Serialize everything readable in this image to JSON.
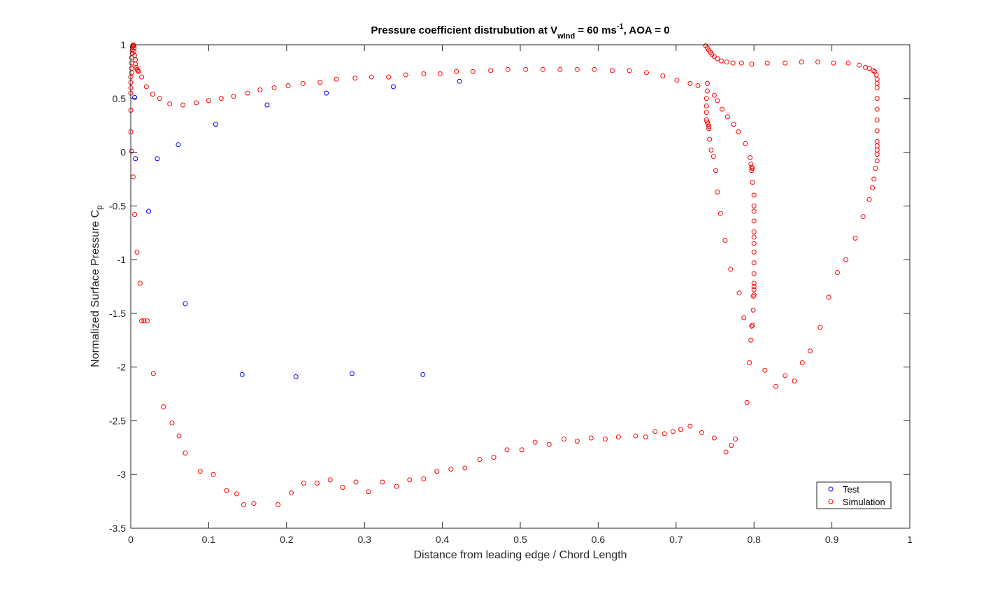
{
  "chart_data": {
    "type": "scatter",
    "title": {
      "prefix": "Pressure coefficient distrubution at V",
      "sub": "wind",
      "mid": " = 60 ms",
      "sup": "-1",
      "suffix": ", AOA = 0"
    },
    "xlabel": "Distance from leading edge / Chord Length",
    "ylabel": {
      "main": "Normalized Surface Pressure C",
      "sub": "p"
    },
    "xlim": [
      0,
      1
    ],
    "ylim": [
      -3.5,
      1
    ],
    "xticks": [
      0,
      0.1,
      0.2,
      0.3,
      0.4,
      0.5,
      0.6,
      0.7,
      0.8,
      0.9,
      1
    ],
    "xtick_labels": [
      "0",
      "0.1",
      "0.2",
      "0.3",
      "0.4",
      "0.5",
      "0.6",
      "0.7",
      "0.8",
      "0.9",
      "1"
    ],
    "yticks": [
      1,
      0.5,
      0,
      -0.5,
      -1,
      -1.5,
      -2,
      -2.5,
      -3,
      -3.5
    ],
    "ytick_labels": [
      "1",
      "0.5",
      "0",
      "-0.5",
      "-1",
      "-1.5",
      "-2",
      "-2.5",
      "-3",
      "-3.5"
    ],
    "grid": false,
    "legend_position": "bottom-right",
    "series": [
      {
        "name": "Test",
        "color": "#0000ff",
        "marker": "circle-open",
        "points": [
          [
            0.005,
            0.51
          ],
          [
            0.006,
            -0.06
          ],
          [
            0.034,
            -0.06
          ],
          [
            0.023,
            -0.55
          ],
          [
            0.061,
            0.07
          ],
          [
            0.07,
            -1.41
          ],
          [
            0.109,
            0.26
          ],
          [
            0.143,
            -2.07
          ],
          [
            0.175,
            0.44
          ],
          [
            0.212,
            -2.09
          ],
          [
            0.251,
            0.55
          ],
          [
            0.284,
            -2.06
          ],
          [
            0.337,
            0.61
          ],
          [
            0.375,
            -2.07
          ],
          [
            0.422,
            0.66
          ]
        ]
      },
      {
        "name": "Simulation",
        "color": "#ff0000",
        "marker": "circle-open",
        "points": [
          [
            0.0,
            0.55
          ],
          [
            0.0,
            0.6
          ],
          [
            0.0,
            0.65
          ],
          [
            0.0,
            0.7
          ],
          [
            0.001,
            0.74
          ],
          [
            0.001,
            0.78
          ],
          [
            0.001,
            0.83
          ],
          [
            0.001,
            0.88
          ],
          [
            0.002,
            0.92
          ],
          [
            0.002,
            0.95
          ],
          [
            0.002,
            0.98
          ],
          [
            0.003,
            0.99
          ],
          [
            0.003,
            1.0
          ],
          [
            0.004,
            0.99
          ],
          [
            0.004,
            0.97
          ],
          [
            0.004,
            0.94
          ],
          [
            0.005,
            0.9
          ],
          [
            0.006,
            0.86
          ],
          [
            0.006,
            0.82
          ],
          [
            0.007,
            0.79
          ],
          [
            0.008,
            0.77
          ],
          [
            0.009,
            0.76
          ],
          [
            0.01,
            0.75
          ],
          [
            0.014,
            0.7
          ],
          [
            0.02,
            0.61
          ],
          [
            0.028,
            0.54
          ],
          [
            0.037,
            0.5
          ],
          [
            0.05,
            0.45
          ],
          [
            0.067,
            0.44
          ],
          [
            0.084,
            0.46
          ],
          [
            0.1,
            0.48
          ],
          [
            0.116,
            0.5
          ],
          [
            0.132,
            0.52
          ],
          [
            0.15,
            0.55
          ],
          [
            0.166,
            0.58
          ],
          [
            0.184,
            0.6
          ],
          [
            0.202,
            0.62
          ],
          [
            0.221,
            0.64
          ],
          [
            0.243,
            0.65
          ],
          [
            0.264,
            0.68
          ],
          [
            0.288,
            0.69
          ],
          [
            0.309,
            0.7
          ],
          [
            0.331,
            0.7
          ],
          [
            0.353,
            0.72
          ],
          [
            0.376,
            0.73
          ],
          [
            0.397,
            0.73
          ],
          [
            0.418,
            0.75
          ],
          [
            0.439,
            0.75
          ],
          [
            0.462,
            0.76
          ],
          [
            0.484,
            0.77
          ],
          [
            0.507,
            0.77
          ],
          [
            0.529,
            0.77
          ],
          [
            0.551,
            0.77
          ],
          [
            0.573,
            0.77
          ],
          [
            0.595,
            0.77
          ],
          [
            0.618,
            0.76
          ],
          [
            0.64,
            0.76
          ],
          [
            0.662,
            0.74
          ],
          [
            0.683,
            0.71
          ],
          [
            0.701,
            0.67
          ],
          [
            0.718,
            0.64
          ],
          [
            0.728,
            0.62
          ],
          [
            0.738,
            0.99
          ],
          [
            0.74,
            0.97
          ],
          [
            0.742,
            0.95
          ],
          [
            0.744,
            0.93
          ],
          [
            0.746,
            0.91
          ],
          [
            0.749,
            0.89
          ],
          [
            0.753,
            0.87
          ],
          [
            0.758,
            0.85
          ],
          [
            0.765,
            0.84
          ],
          [
            0.773,
            0.83
          ],
          [
            0.784,
            0.83
          ],
          [
            0.797,
            0.82
          ],
          [
            0.817,
            0.83
          ],
          [
            0.84,
            0.83
          ],
          [
            0.861,
            0.84
          ],
          [
            0.882,
            0.84
          ],
          [
            0.902,
            0.83
          ],
          [
            0.921,
            0.83
          ],
          [
            0.935,
            0.81
          ],
          [
            0.943,
            0.79
          ],
          [
            0.948,
            0.78
          ],
          [
            0.953,
            0.76
          ],
          [
            0.955,
            0.75
          ],
          [
            0.957,
            0.72
          ],
          [
            0.958,
            0.68
          ],
          [
            0.958,
            0.64
          ],
          [
            0.958,
            0.6
          ],
          [
            0.958,
            0.5
          ],
          [
            0.958,
            0.4
          ],
          [
            0.958,
            0.3
          ],
          [
            0.958,
            0.2
          ],
          [
            0.958,
            0.1
          ],
          [
            0.958,
            0.06
          ],
          [
            0.958,
            0.02
          ],
          [
            0.958,
            -0.02
          ],
          [
            0.958,
            -0.08
          ],
          [
            0.956,
            -0.15
          ],
          [
            0.954,
            -0.25
          ],
          [
            0.952,
            -0.33
          ],
          [
            0.948,
            -0.44
          ],
          [
            0.94,
            -0.6
          ],
          [
            0.93,
            -0.8
          ],
          [
            0.918,
            -1.0
          ],
          [
            0.907,
            -1.12
          ],
          [
            0.896,
            -1.35
          ],
          [
            0.885,
            -1.63
          ],
          [
            0.872,
            -1.85
          ],
          [
            0.862,
            -1.96
          ],
          [
            0.852,
            -2.13
          ],
          [
            0.84,
            -2.08
          ],
          [
            0.828,
            -2.18
          ],
          [
            0.814,
            -2.03
          ],
          [
            0.791,
            -2.33
          ],
          [
            0.776,
            -2.67
          ],
          [
            0.771,
            -2.73
          ],
          [
            0.764,
            -2.79
          ],
          [
            0.749,
            -2.66
          ],
          [
            0.733,
            -2.61
          ],
          [
            0.718,
            -2.55
          ],
          [
            0.706,
            -2.58
          ],
          [
            0.696,
            -2.6
          ],
          [
            0.685,
            -2.62
          ],
          [
            0.673,
            -2.6
          ],
          [
            0.661,
            -2.65
          ],
          [
            0.648,
            -2.64
          ],
          [
            0.626,
            -2.65
          ],
          [
            0.609,
            -2.67
          ],
          [
            0.591,
            -2.66
          ],
          [
            0.573,
            -2.69
          ],
          [
            0.556,
            -2.67
          ],
          [
            0.537,
            -2.72
          ],
          [
            0.519,
            -2.7
          ],
          [
            0.502,
            -2.77
          ],
          [
            0.483,
            -2.77
          ],
          [
            0.466,
            -2.84
          ],
          [
            0.448,
            -2.86
          ],
          [
            0.429,
            -2.94
          ],
          [
            0.411,
            -2.95
          ],
          [
            0.393,
            -2.97
          ],
          [
            0.376,
            -3.04
          ],
          [
            0.358,
            -3.05
          ],
          [
            0.341,
            -3.11
          ],
          [
            0.323,
            -3.07
          ],
          [
            0.305,
            -3.16
          ],
          [
            0.289,
            -3.07
          ],
          [
            0.272,
            -3.12
          ],
          [
            0.256,
            -3.05
          ],
          [
            0.239,
            -3.08
          ],
          [
            0.222,
            -3.08
          ],
          [
            0.206,
            -3.17
          ],
          [
            0.189,
            -3.28
          ],
          [
            0.158,
            -3.27
          ],
          [
            0.145,
            -3.28
          ],
          [
            0.136,
            -3.18
          ],
          [
            0.123,
            -3.15
          ],
          [
            0.106,
            -3.0
          ],
          [
            0.089,
            -2.97
          ],
          [
            0.07,
            -2.8
          ],
          [
            0.062,
            -2.64
          ],
          [
            0.053,
            -2.52
          ],
          [
            0.042,
            -2.37
          ],
          [
            0.029,
            -2.06
          ],
          [
            0.021,
            -1.57
          ],
          [
            0.017,
            -1.57
          ],
          [
            0.014,
            -1.57
          ],
          [
            0.012,
            -1.22
          ],
          [
            0.008,
            -0.93
          ],
          [
            0.005,
            -0.58
          ],
          [
            0.003,
            -0.23
          ],
          [
            0.001,
            0.01
          ],
          [
            0.0,
            0.19
          ],
          [
            0.0,
            0.39
          ],
          [
            0.74,
            0.64
          ],
          [
            0.74,
            0.57
          ],
          [
            0.739,
            0.5
          ],
          [
            0.739,
            0.43
          ],
          [
            0.739,
            0.37
          ],
          [
            0.739,
            0.3
          ],
          [
            0.74,
            0.28
          ],
          [
            0.741,
            0.26
          ],
          [
            0.742,
            0.24
          ],
          [
            0.742,
            0.22
          ],
          [
            0.743,
            0.12
          ],
          [
            0.745,
            0.02
          ],
          [
            0.748,
            -0.04
          ],
          [
            0.751,
            -0.17
          ],
          [
            0.753,
            -0.37
          ],
          [
            0.757,
            -0.57
          ],
          [
            0.763,
            -0.82
          ],
          [
            0.77,
            -1.09
          ],
          [
            0.781,
            -1.31
          ],
          [
            0.787,
            -1.54
          ],
          [
            0.794,
            -1.96
          ],
          [
            0.796,
            -1.75
          ],
          [
            0.797,
            -1.62
          ],
          [
            0.798,
            -1.61
          ],
          [
            0.799,
            -1.47
          ],
          [
            0.799,
            -1.34
          ],
          [
            0.8,
            -1.33
          ],
          [
            0.8,
            -1.28
          ],
          [
            0.8,
            -1.25
          ],
          [
            0.8,
            -1.22
          ],
          [
            0.8,
            -1.13
          ],
          [
            0.8,
            -1.03
          ],
          [
            0.8,
            -0.93
          ],
          [
            0.8,
            -0.85
          ],
          [
            0.8,
            -0.79
          ],
          [
            0.8,
            -0.74
          ],
          [
            0.8,
            -0.64
          ],
          [
            0.8,
            -0.55
          ],
          [
            0.8,
            -0.5
          ],
          [
            0.8,
            -0.4
          ],
          [
            0.798,
            -0.28
          ],
          [
            0.798,
            -0.15
          ],
          [
            0.797,
            -0.17
          ],
          [
            0.797,
            -0.14
          ],
          [
            0.796,
            -0.11
          ],
          [
            0.795,
            -0.05
          ],
          [
            0.789,
            0.08
          ],
          [
            0.78,
            0.19
          ],
          [
            0.774,
            0.26
          ],
          [
            0.766,
            0.33
          ],
          [
            0.759,
            0.4
          ],
          [
            0.753,
            0.48
          ],
          [
            0.749,
            0.53
          ]
        ]
      }
    ]
  }
}
